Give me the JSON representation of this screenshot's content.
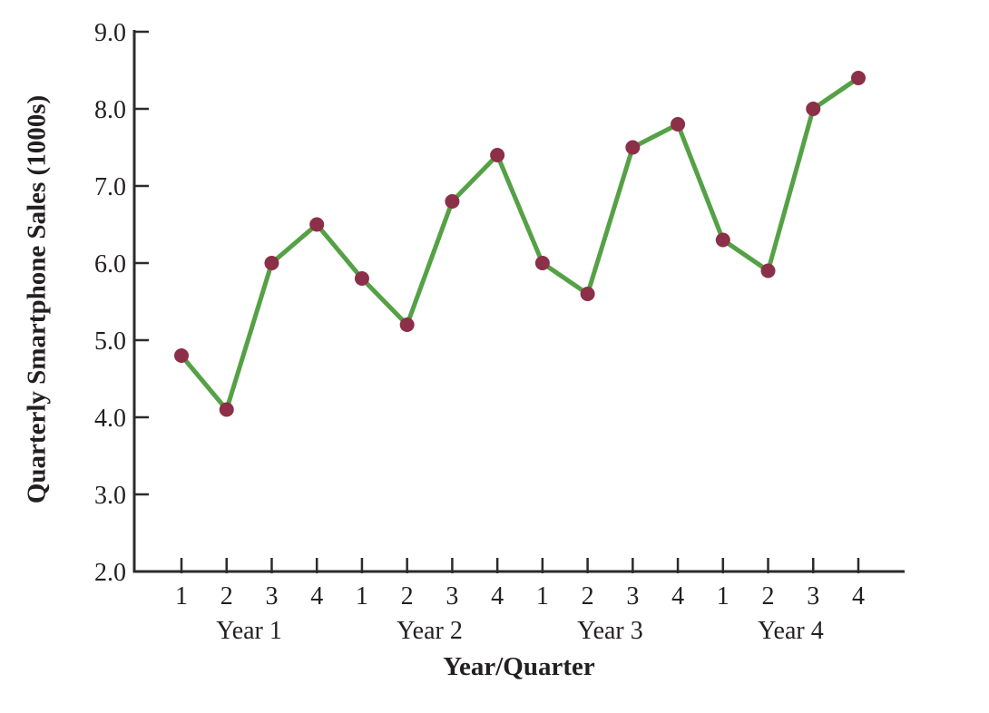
{
  "chart_data": {
    "type": "line",
    "title": "",
    "ylabel": "Quarterly Smartphone Sales (1000s)",
    "xlabel": "Year/Quarter",
    "quarters": [
      "1",
      "2",
      "3",
      "4",
      "1",
      "2",
      "3",
      "4",
      "1",
      "2",
      "3",
      "4",
      "1",
      "2",
      "3",
      "4"
    ],
    "year_groups": [
      "Year 1",
      "Year 2",
      "Year 3",
      "Year 4"
    ],
    "values": [
      4.8,
      4.1,
      6.0,
      6.5,
      5.8,
      5.2,
      6.8,
      7.4,
      6.0,
      5.6,
      7.5,
      7.8,
      6.3,
      5.9,
      8.0,
      8.4
    ],
    "yticks": [
      "9.0",
      "8.0",
      "7.0",
      "6.0",
      "5.0",
      "4.0",
      "3.0",
      "2.0"
    ],
    "ylim": [
      2.0,
      9.0
    ],
    "grid": false,
    "legend": "none",
    "line_color": "#55a146",
    "marker_color": "#8c2f48",
    "axis_color": "#2d2a2b",
    "text_color": "#231f20"
  }
}
